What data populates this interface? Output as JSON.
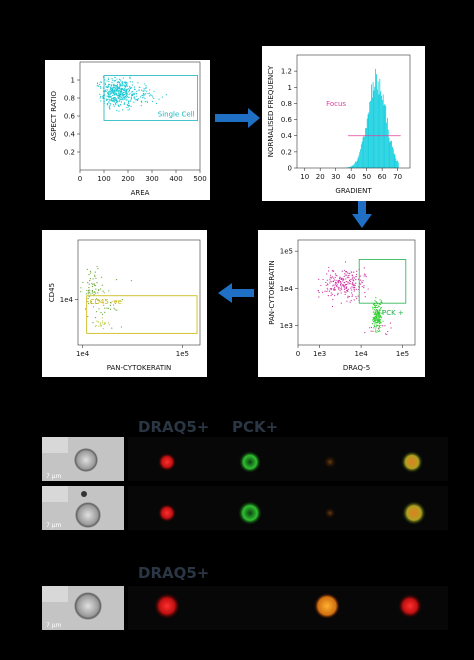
{
  "plots": [
    {
      "y_label": "ASPECT RATIO",
      "x_label": "AREA",
      "xlim": [
        0,
        500
      ],
      "ylim": [
        0,
        1.2
      ],
      "xticks": [
        0,
        100,
        200,
        300,
        400,
        500
      ],
      "yticks": [
        0.2,
        0.4,
        0.6,
        0.8,
        1
      ],
      "gate_label": "Single Cell",
      "gate_color": "#19b4c0",
      "gate": [
        100,
        490,
        0.55,
        1.05
      ]
    },
    {
      "y_label": "NORMALISED FREQUENCY",
      "x_label": "GRADIENT",
      "xlim": [
        5,
        78
      ],
      "ylim": [
        0,
        1.4
      ],
      "xticks": [
        10,
        20,
        30,
        40,
        50,
        60,
        70
      ],
      "yticks": [
        0,
        0.2,
        0.4,
        0.6,
        0.8,
        1,
        1.2
      ],
      "gate_label": "Focus",
      "gate_color": "#e0409a",
      "gate": [
        38,
        72,
        0.4,
        0.4
      ]
    },
    {
      "y_label": "PAN-CYTOKERATIN",
      "x_label": "DRAQ-5",
      "log": true,
      "xlim": [
        300,
        200000
      ],
      "ylim": [
        300,
        200000
      ],
      "xticks": [
        0,
        {
          "value": 1000,
          "label": "1e3"
        },
        {
          "value": 10000,
          "label": "1e4"
        },
        {
          "value": 100000,
          "label": "1e5"
        }
      ],
      "yticks": [
        {
          "value": 1000,
          "label": "1e3"
        },
        {
          "value": 10000,
          "label": "1e4"
        },
        {
          "value": 100000,
          "label": "1e5"
        }
      ],
      "gate_label": "PCK +",
      "gate_color": "#22b04a",
      "gate": [
        9000,
        120000,
        4000,
        60000
      ]
    },
    {
      "y_label": "CD45",
      "x_label": "PAN-CYTOKERATIN",
      "log": true,
      "xlim": [
        9000,
        150000
      ],
      "ylim": [
        1000,
        200000
      ],
      "xticks": [
        {
          "value": 10000,
          "label": "1e4"
        },
        {
          "value": 100000,
          "label": "1e5"
        }
      ],
      "yticks": [
        {
          "value": 10000,
          "label": "1e4"
        }
      ],
      "gate_label": "CD45 -ve",
      "gate_color": "#c8b400",
      "gate": [
        11000,
        140000,
        1800,
        12000
      ]
    }
  ],
  "section_one": [
    "DRAQ5+",
    "PCK+"
  ],
  "section_two": [
    "DRAQ5+"
  ],
  "scale_bar": "7 μm"
}
